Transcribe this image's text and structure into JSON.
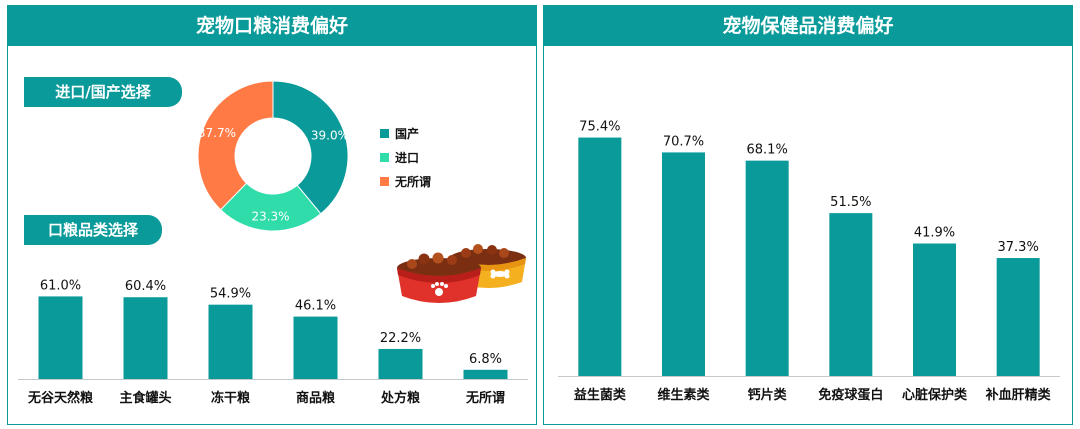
{
  "left_panel": {
    "title": "宠物口粮消费偏好",
    "origin_tag": "进口/国产选择",
    "category_tag": "口粮品类选择"
  },
  "right_panel": {
    "title": "宠物保健品消费偏好"
  },
  "colors": {
    "teal": "#0a9a9a",
    "bar": "#0a9a9a",
    "domestic": "#0a9a9a",
    "imported": "#2fdcaa",
    "indifferent": "#ff7a45"
  },
  "icons": [
    "pet-food-bowls-illustration"
  ],
  "chart_data": [
    {
      "type": "pie",
      "variant": "donut",
      "labels": [
        "国产",
        "进口",
        "无所谓"
      ],
      "values": [
        39.0,
        23.3,
        37.7
      ],
      "value_labels": [
        "39.0%",
        "23.3%",
        "37.7%"
      ],
      "legend": "right"
    },
    {
      "type": "bar",
      "categories": [
        "无谷天然粮",
        "主食罐头",
        "冻干粮",
        "商品粮",
        "处方粮",
        "无所谓"
      ],
      "values": [
        61.0,
        60.4,
        54.9,
        46.1,
        22.2,
        6.8
      ],
      "value_labels": [
        "61.0%",
        "60.4%",
        "54.9%",
        "46.1%",
        "22.2%",
        "6.8%"
      ],
      "ylim": [
        0,
        65
      ],
      "grid": false
    },
    {
      "type": "bar",
      "categories": [
        "益生菌类",
        "维生素类",
        "钙片类",
        "免疫球蛋白",
        "心脏保护类",
        "补血肝精类"
      ],
      "values": [
        75.4,
        70.7,
        68.1,
        51.5,
        41.9,
        37.3
      ],
      "value_labels": [
        "75.4%",
        "70.7%",
        "68.1%",
        "51.5%",
        "41.9%",
        "37.3%"
      ],
      "ylim": [
        0,
        80
      ],
      "grid": false
    }
  ]
}
